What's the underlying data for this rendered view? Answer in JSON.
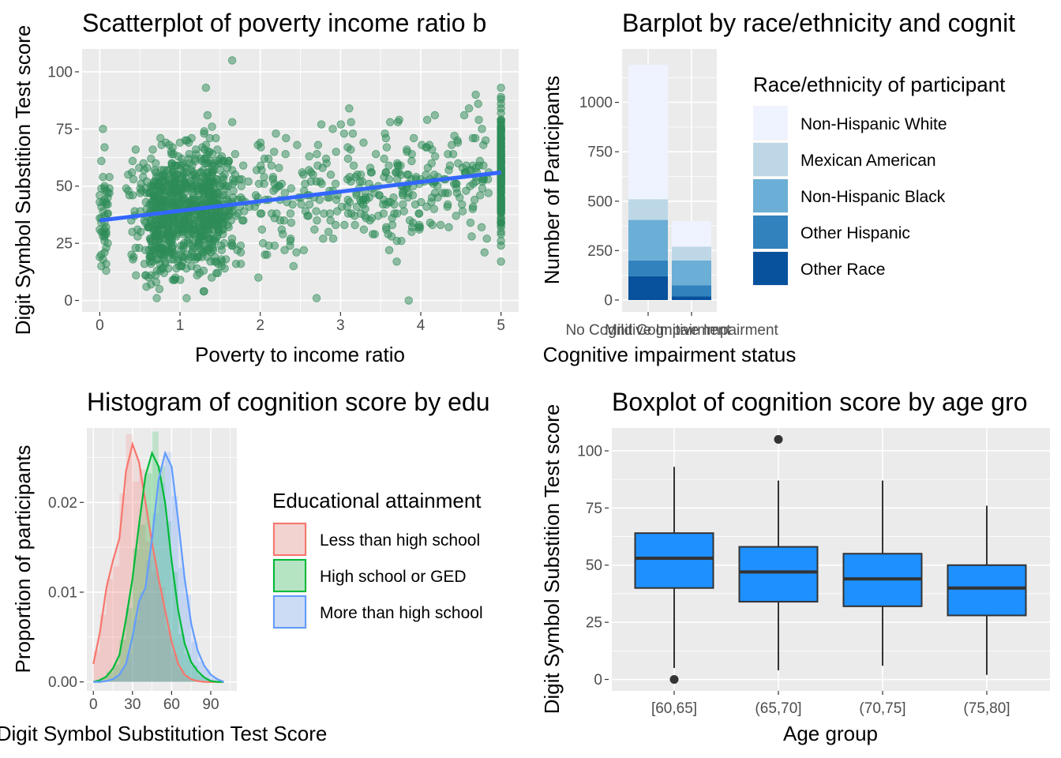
{
  "chart_data": [
    {
      "type": "scatter",
      "title": "Scatterplot of poverty income ratio b",
      "xlabel": "Poverty to income ratio",
      "ylabel": "Digit Symbol Substition Test score",
      "xlim": [
        -0.22,
        5.22
      ],
      "ylim": [
        -5,
        110
      ],
      "xticks": [
        "0",
        "1",
        "2",
        "3",
        "4",
        "5"
      ],
      "yticks": [
        "0",
        "25",
        "50",
        "75",
        "100"
      ],
      "point_color": "#2e8b57",
      "line_color": "#3366ff",
      "fit_line": {
        "x": [
          0,
          5
        ],
        "y": [
          35,
          56
        ]
      },
      "n_points": 1500,
      "outliers": [
        {
          "x": 1.65,
          "y": 105
        },
        {
          "x": 3.85,
          "y": 0
        }
      ],
      "grid": true
    },
    {
      "type": "bar",
      "stacked": true,
      "title": "Barplot by race/ethnicity and cognit",
      "xlabel": "Cognitive impairment status",
      "ylabel": "Number of Participants",
      "categories": [
        "No Cognitive Impairment",
        "Mild Cognitive Impairment"
      ],
      "ylim": [
        -60,
        1270
      ],
      "yticks": [
        "0",
        "250",
        "500",
        "750",
        "1000"
      ],
      "legend_title": "Race/ethnicity of participant",
      "legend_position": "right",
      "series": [
        {
          "name": "Other Race",
          "color": "#08519c",
          "values": [
            120,
            18
          ]
        },
        {
          "name": "Other Hispanic",
          "color": "#3182bd",
          "values": [
            80,
            57
          ]
        },
        {
          "name": "Non-Hispanic Black",
          "color": "#6baed6",
          "values": [
            205,
            125
          ]
        },
        {
          "name": "Mexican American",
          "color": "#bdd7e7",
          "values": [
            105,
            70
          ]
        },
        {
          "name": "Non-Hispanic White",
          "color": "#eff3ff",
          "values": [
            680,
            130
          ]
        }
      ],
      "grid": true
    },
    {
      "type": "area",
      "title": "Histogram of cognition score by edu",
      "xlabel": "Digit Symbol Substitution Test Score",
      "ylabel": "Proportion of participants",
      "xlim": [
        -5,
        110
      ],
      "ylim": [
        -0.001,
        0.0283
      ],
      "xticks": [
        "0",
        "30",
        "60",
        "90"
      ],
      "yticks": [
        "0.00",
        "0.01",
        "0.02"
      ],
      "legend_title": "Educational attainment",
      "legend_position": "right",
      "series": [
        {
          "name": "Less than high school",
          "color": "#f8766d",
          "x": [
            0,
            5,
            10,
            15,
            20,
            25,
            30,
            35,
            40,
            45,
            50,
            55,
            60,
            65,
            70,
            75,
            80,
            85,
            90,
            95,
            100
          ],
          "y": [
            0.002,
            0.0055,
            0.0105,
            0.0135,
            0.016,
            0.0235,
            0.0265,
            0.0245,
            0.02,
            0.0155,
            0.0115,
            0.008,
            0.0045,
            0.002,
            0.0008,
            0.0003,
            0.0001,
            0,
            0,
            0,
            0
          ]
        },
        {
          "name": "High school or GED",
          "color": "#00ba38",
          "x": [
            0,
            5,
            10,
            15,
            20,
            25,
            30,
            35,
            40,
            45,
            50,
            55,
            60,
            65,
            70,
            75,
            80,
            85,
            90,
            95,
            100
          ],
          "y": [
            0,
            0.0002,
            0.0006,
            0.0015,
            0.003,
            0.007,
            0.0115,
            0.0175,
            0.023,
            0.0255,
            0.024,
            0.02,
            0.0135,
            0.008,
            0.0043,
            0.0022,
            0.0012,
            0.0005,
            0.0001,
            0,
            0
          ]
        },
        {
          "name": "More than high school",
          "color": "#619cff",
          "x": [
            0,
            5,
            10,
            15,
            20,
            25,
            30,
            35,
            40,
            45,
            50,
            55,
            60,
            65,
            70,
            75,
            80,
            85,
            90,
            95,
            100
          ],
          "y": [
            0,
            0,
            0.0001,
            0.0003,
            0.0008,
            0.002,
            0.005,
            0.009,
            0.0105,
            0.016,
            0.0225,
            0.0255,
            0.024,
            0.018,
            0.0115,
            0.0065,
            0.0035,
            0.0018,
            0.0008,
            0.0003,
            0
          ]
        }
      ],
      "grid": true
    },
    {
      "type": "box",
      "title": "Boxplot of cognition score by age gro",
      "xlabel": "Age group",
      "ylabel": "Digit Symbol Substition Test score",
      "ylim": [
        -5,
        110
      ],
      "yticks": [
        "0",
        "25",
        "50",
        "75",
        "100"
      ],
      "box_color": "#1e90ff",
      "categories": [
        "[60,65]",
        "(65,70]",
        "(70,75]",
        "(75,80]"
      ],
      "boxes": [
        {
          "min": 5,
          "q1": 40,
          "median": 53,
          "q3": 64,
          "max": 93,
          "outliers": [
            0
          ]
        },
        {
          "min": 4,
          "q1": 34,
          "median": 47,
          "q3": 58,
          "max": 87,
          "outliers": [
            105
          ]
        },
        {
          "min": 6,
          "q1": 32,
          "median": 44,
          "q3": 55,
          "max": 87,
          "outliers": []
        },
        {
          "min": 2,
          "q1": 28,
          "median": 40,
          "q3": 50,
          "max": 76,
          "outliers": []
        }
      ],
      "grid": true
    }
  ]
}
